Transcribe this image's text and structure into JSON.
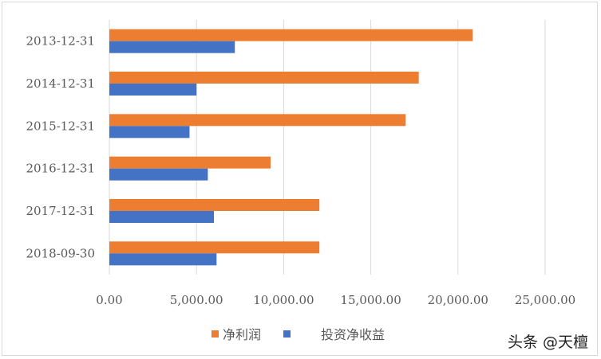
{
  "chart_data": {
    "type": "bar",
    "orientation": "horizontal",
    "categories": [
      "2013-12-31",
      "2014-12-31",
      "2015-12-31",
      "2016-12-31",
      "2017-12-31",
      "2018-09-30"
    ],
    "series": [
      {
        "name": "净利润",
        "color": "#ED7D31",
        "values": [
          20850,
          17750,
          17000,
          9250,
          12050,
          12050
        ]
      },
      {
        "name": "投资净收益",
        "color": "#4472C4",
        "values": [
          7200,
          5000,
          4600,
          5650,
          6000,
          6150
        ]
      }
    ],
    "xlim": [
      0,
      25000
    ],
    "x_ticks": [
      "0.00",
      "5,000.00",
      "10,000.00",
      "15,000.00",
      "20,000.00",
      "25,000.00"
    ],
    "grid": "vertical",
    "legend_position": "bottom"
  },
  "watermark": "头条 @天檀"
}
